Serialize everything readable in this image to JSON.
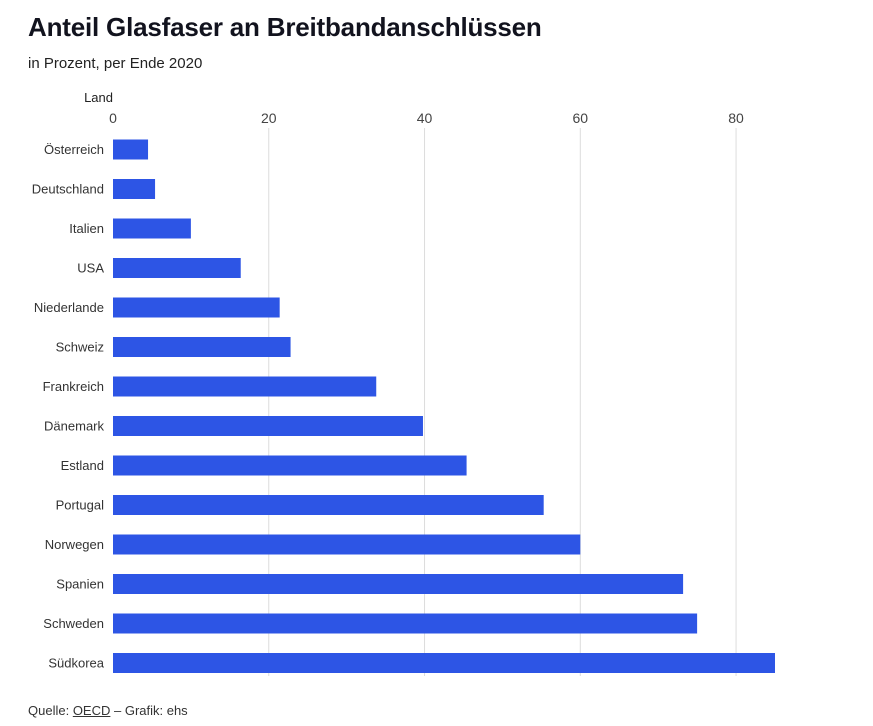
{
  "title": "Anteil Glasfaser an Breitbandanschlüssen",
  "subtitle": "in Prozent, per Ende 2020",
  "source": {
    "prefix": "Quelle: ",
    "link": "OECD",
    "suffix": " – Grafik: ehs"
  },
  "colors": {
    "bar": "#2d55e5",
    "grid": "#dcdcdc",
    "text": "#333333"
  },
  "chart_data": {
    "type": "bar",
    "orientation": "horizontal",
    "category_axis_title": "Land",
    "categories": [
      "Österreich",
      "Deutschland",
      "Italien",
      "USA",
      "Niederlande",
      "Schweiz",
      "Frankreich",
      "Dänemark",
      "Estland",
      "Portugal",
      "Norwegen",
      "Spanien",
      "Schweden",
      "Südkorea"
    ],
    "values": [
      4.5,
      5.4,
      10.0,
      16.4,
      21.4,
      22.8,
      33.8,
      39.8,
      45.4,
      55.3,
      60.0,
      73.2,
      75.0,
      85.0
    ],
    "xlim": [
      0,
      85
    ],
    "xticks": [
      0,
      20,
      40,
      60,
      80
    ],
    "grid": true,
    "legend": "none"
  }
}
